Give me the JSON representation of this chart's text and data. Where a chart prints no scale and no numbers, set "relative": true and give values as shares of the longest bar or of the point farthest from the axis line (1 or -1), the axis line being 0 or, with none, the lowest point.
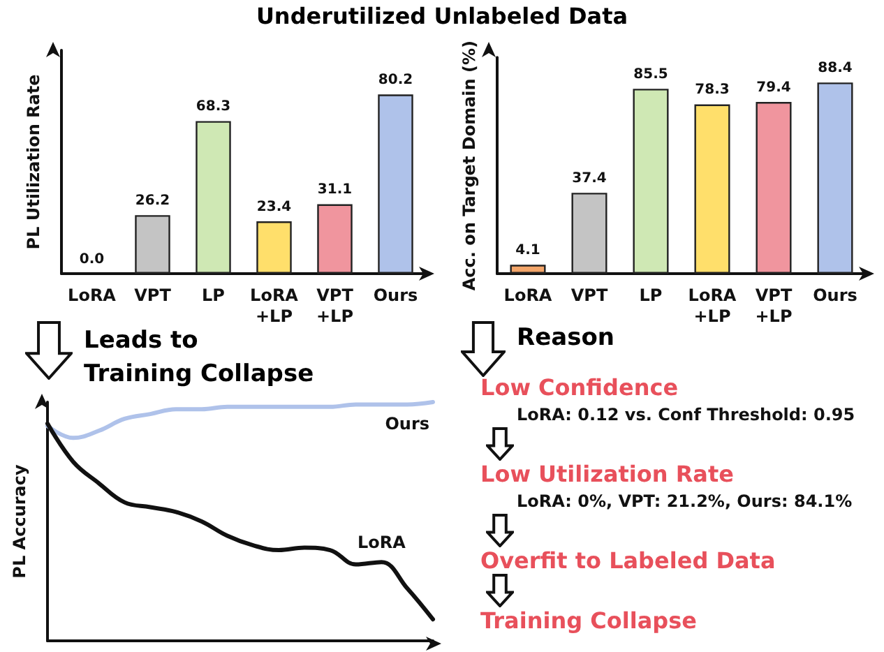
{
  "chart_data": [
    {
      "type": "bar",
      "title": "Underutilized Unlabeled Data",
      "ylabel": "PL Utilization Rate",
      "categories": [
        "LoRA",
        "VPT",
        "LP",
        "LoRA\n+LP",
        "VPT\n+LP",
        "Ours"
      ],
      "values": [
        0.0,
        26.2,
        68.3,
        23.4,
        31.1,
        80.2
      ],
      "value_labels": [
        "0.0",
        "26.2",
        "68.3",
        "23.4",
        "31.1",
        "80.2"
      ],
      "colors": [
        "#f4a66a",
        "#c4c4c4",
        "#cfe8b4",
        "#ffdf6b",
        "#f0959e",
        "#afc2ea"
      ],
      "tick_labels": "x"
    },
    {
      "type": "bar",
      "ylabel": "Acc. on Target Domain (%)",
      "categories": [
        "LoRA",
        "VPT",
        "LP",
        "LoRA\n+LP",
        "VPT\n+LP",
        "Ours"
      ],
      "values": [
        4.1,
        37.4,
        85.5,
        78.3,
        79.4,
        88.4
      ],
      "value_labels": [
        "4.1",
        "37.4",
        "85.5",
        "78.3",
        "79.4",
        "88.4"
      ],
      "colors": [
        "#f4a66a",
        "#c4c4c4",
        "#cfe8b4",
        "#ffdf6b",
        "#f0959e",
        "#afc2ea"
      ],
      "tick_labels": "x"
    },
    {
      "type": "line",
      "ylabel": "PL Accuracy",
      "annotations": [
        "Leads to\nTraining Collapse"
      ],
      "relative": true,
      "categories": [
        null,
        null,
        null,
        null,
        null,
        null,
        null,
        null,
        null,
        null,
        null,
        null,
        null,
        null,
        null,
        null
      ],
      "series": [
        {
          "name": "Ours",
          "color": "#afc2ea",
          "values": [
            0.9,
            0.85,
            0.88,
            0.93,
            0.95,
            0.97,
            0.97,
            0.98,
            0.98,
            0.98,
            0.98,
            0.98,
            0.99,
            0.99,
            0.99,
            1
          ]
        },
        {
          "name": "LoRA",
          "color": "#111111",
          "values": [
            0.91,
            0.75,
            0.66,
            0.58,
            0.56,
            0.54,
            0.5,
            0.44,
            0.4,
            0.38,
            0.39,
            0.38,
            0.32,
            0.33,
            0.22,
            0.09
          ]
        }
      ]
    },
    {
      "type": "other",
      "title": "Reason",
      "annotations": [
        "Low Confidence",
        "LoRA: 0.12 vs. Conf Threshold: 0.95",
        "Low Utilization Rate",
        "LoRA: 0%, VPT: 21.2%, Ours: 84.1%",
        "Overfit to Labeled Data",
        "Training Collapse"
      ]
    }
  ]
}
